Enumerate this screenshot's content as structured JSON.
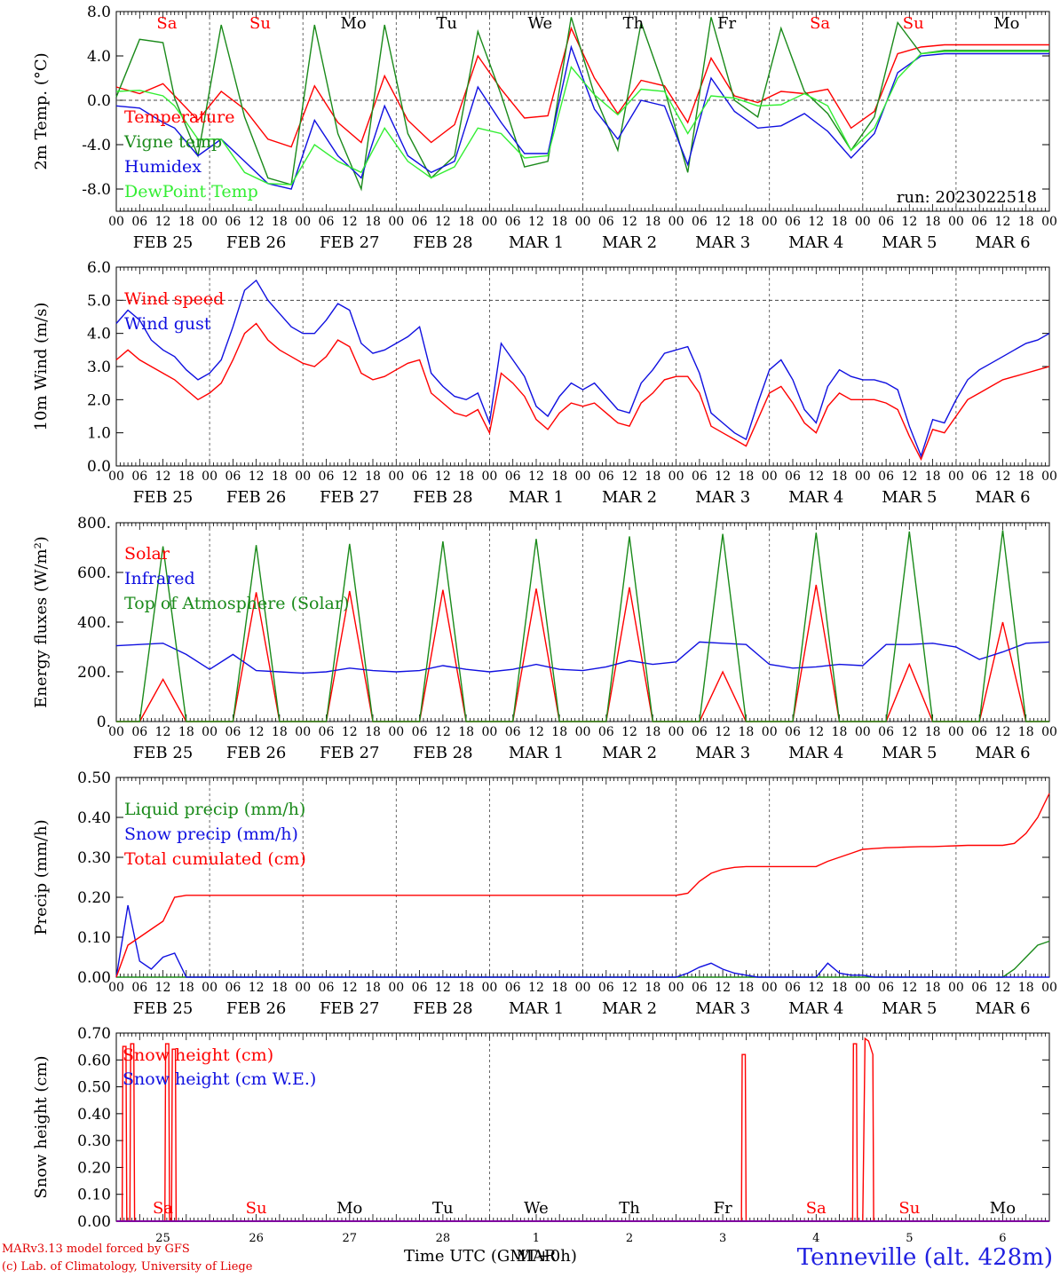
{
  "colors": {
    "red": "#ff0000",
    "green": "#1a8a1a",
    "blue": "#1010e0",
    "lightgreen": "#33ee33",
    "purple": "#8000a0",
    "grid": "#444444"
  },
  "time_axis": {
    "hour_labels": [
      "00",
      "06",
      "12",
      "18"
    ],
    "end_label": "00",
    "date_labels": [
      "FEB 25",
      "FEB 26",
      "FEB 27",
      "FEB 28",
      "MAR 1",
      "MAR 2",
      "MAR 3",
      "MAR 4",
      "MAR 5",
      "MAR 6"
    ],
    "weekdays": [
      "Sa",
      "Su",
      "Mo",
      "Tu",
      "We",
      "Th",
      "Fr",
      "Sa",
      "Su",
      "Mo"
    ],
    "weekday_colors": [
      "red",
      "red",
      "black",
      "black",
      "black",
      "black",
      "black",
      "red",
      "red",
      "black"
    ],
    "day_numbers": [
      "25",
      "26",
      "27",
      "28",
      "1",
      "2",
      "3",
      "4",
      "5",
      "6"
    ],
    "month_label": "MAR",
    "title": "Time UTC (GMT+0h)"
  },
  "footer": {
    "credit_line1": "MARv3.13 model forced by GFS",
    "credit_line2": "(c) Lab. of Climatology, University of Liege",
    "station": "Tenneville (alt. 428m)"
  },
  "chart_data": [
    {
      "type": "line",
      "ylabel": "2m Temp. (°C)",
      "ylim": [
        -10,
        8
      ],
      "ytick_values": [
        -8,
        -4,
        0,
        4,
        8
      ],
      "ytick_labels": [
        "-8.0",
        "-4.0",
        "0.0",
        "4.0",
        "8.0"
      ],
      "annotation": "run: 2023022518",
      "x": [
        0,
        6,
        12,
        15,
        21,
        27,
        33,
        39,
        45,
        51,
        57,
        63,
        69,
        75,
        81,
        87,
        93,
        99,
        105,
        111,
        117,
        123,
        129,
        135,
        141,
        147,
        153,
        159,
        165,
        171,
        177,
        183,
        189,
        195,
        201,
        207,
        213,
        219,
        225,
        231,
        237,
        240
      ],
      "series": [
        {
          "name": "Temperature",
          "color": "red",
          "values": [
            1.2,
            0.6,
            1.5,
            0.4,
            -1.8,
            0.8,
            -0.8,
            -3.5,
            -4.2,
            1.3,
            -2.0,
            -3.8,
            2.2,
            -1.8,
            -3.8,
            -2.2,
            4.0,
            1.0,
            -1.6,
            -1.4,
            6.5,
            2.0,
            -1.2,
            1.8,
            1.3,
            -2.0,
            3.8,
            0.4,
            -0.2,
            0.8,
            0.6,
            1.0,
            -2.5,
            -1.0,
            4.2,
            4.8,
            5.0,
            5.0,
            5.0,
            5.0,
            5.0,
            5.0
          ]
        },
        {
          "name": "Vigne temp",
          "color": "green",
          "values": [
            0.3,
            5.5,
            5.2,
            0.2,
            -5.0,
            6.8,
            -1.5,
            -7.0,
            -7.6,
            6.8,
            -3.0,
            -8.0,
            6.8,
            -3.0,
            -7.0,
            -5.0,
            6.2,
            0.5,
            -6.0,
            -5.5,
            7.5,
            0.5,
            -4.5,
            7.0,
            1.0,
            -6.5,
            7.5,
            0.0,
            -1.5,
            6.5,
            0.8,
            -1.2,
            -4.5,
            -1.5,
            7.0,
            4.2,
            4.5,
            4.5,
            4.5,
            4.5,
            4.5,
            4.5
          ]
        },
        {
          "name": "Humidex",
          "color": "blue",
          "values": [
            -0.5,
            -0.7,
            -2.0,
            -2.5,
            -5.0,
            -3.5,
            -5.5,
            -7.5,
            -8.0,
            -1.8,
            -5.0,
            -7.0,
            -0.5,
            -5.0,
            -6.5,
            -5.5,
            1.2,
            -2.0,
            -4.8,
            -4.8,
            4.8,
            -0.8,
            -3.5,
            0.0,
            -0.5,
            -5.8,
            2.0,
            -1.0,
            -2.5,
            -2.3,
            -1.2,
            -2.8,
            -5.2,
            -3.0,
            2.5,
            4.0,
            4.2,
            4.2,
            4.2,
            4.2,
            4.2,
            4.2
          ]
        },
        {
          "name": "DewPoint Temp",
          "color": "lightgreen",
          "values": [
            0.8,
            0.9,
            0.4,
            -0.5,
            -3.5,
            -3.5,
            -6.5,
            -7.5,
            -7.6,
            -4.0,
            -5.5,
            -6.5,
            -2.5,
            -5.5,
            -7.0,
            -6.0,
            -2.5,
            -3.0,
            -5.2,
            -5.0,
            3.0,
            0.5,
            -1.3,
            1.0,
            0.8,
            -3.0,
            0.4,
            0.2,
            -0.5,
            -0.4,
            0.6,
            -0.5,
            -4.5,
            -2.5,
            2.0,
            4.2,
            4.4,
            4.4,
            4.4,
            4.4,
            4.4,
            4.4
          ]
        }
      ]
    },
    {
      "type": "line",
      "ylabel": "10m Wind (m/s)",
      "ylim": [
        0,
        6
      ],
      "ytick_values": [
        0,
        1,
        2,
        3,
        4,
        5,
        6
      ],
      "ytick_labels": [
        "0.0",
        "1.0",
        "2.0",
        "3.0",
        "4.0",
        "5.0",
        "6.0"
      ],
      "x": [
        0,
        3,
        6,
        9,
        12,
        15,
        18,
        21,
        24,
        27,
        30,
        33,
        36,
        39,
        42,
        45,
        48,
        51,
        54,
        57,
        60,
        63,
        66,
        69,
        72,
        75,
        78,
        81,
        84,
        87,
        90,
        93,
        96,
        99,
        102,
        105,
        108,
        111,
        114,
        117,
        120,
        123,
        126,
        129,
        132,
        135,
        138,
        141,
        144,
        147,
        150,
        153,
        156,
        159,
        162,
        165,
        168,
        171,
        174,
        177,
        180,
        183,
        186,
        189,
        192,
        195,
        198,
        201,
        204,
        207,
        210,
        213,
        216,
        219,
        222,
        225,
        228,
        231,
        234,
        237,
        240
      ],
      "series": [
        {
          "name": "Wind speed",
          "color": "red",
          "values": [
            3.2,
            3.5,
            3.2,
            3.0,
            2.8,
            2.6,
            2.3,
            2.0,
            2.2,
            2.5,
            3.2,
            4.0,
            4.3,
            3.8,
            3.5,
            3.3,
            3.1,
            3.0,
            3.3,
            3.8,
            3.6,
            2.8,
            2.6,
            2.7,
            2.9,
            3.1,
            3.2,
            2.2,
            1.9,
            1.6,
            1.5,
            1.7,
            1.0,
            2.8,
            2.5,
            2.1,
            1.4,
            1.1,
            1.6,
            1.9,
            1.8,
            1.9,
            1.6,
            1.3,
            1.2,
            1.9,
            2.2,
            2.6,
            2.7,
            2.7,
            2.2,
            1.2,
            1.0,
            0.8,
            0.6,
            1.4,
            2.2,
            2.4,
            1.9,
            1.3,
            1.0,
            1.8,
            2.2,
            2.0,
            2.0,
            2.0,
            1.9,
            1.7,
            0.9,
            0.2,
            1.1,
            1.0,
            1.5,
            2.0,
            2.2,
            2.4,
            2.6,
            2.7,
            2.8,
            2.9,
            3.0
          ]
        },
        {
          "name": "Wind gust",
          "color": "blue",
          "values": [
            4.3,
            4.7,
            4.4,
            3.8,
            3.5,
            3.3,
            2.9,
            2.6,
            2.8,
            3.2,
            4.2,
            5.3,
            5.6,
            5.0,
            4.6,
            4.2,
            4.0,
            4.0,
            4.4,
            4.9,
            4.7,
            3.7,
            3.4,
            3.5,
            3.7,
            3.9,
            4.2,
            2.8,
            2.4,
            2.1,
            2.0,
            2.2,
            1.3,
            3.7,
            3.2,
            2.7,
            1.8,
            1.5,
            2.1,
            2.5,
            2.3,
            2.5,
            2.1,
            1.7,
            1.6,
            2.5,
            2.9,
            3.4,
            3.5,
            3.6,
            2.8,
            1.6,
            1.3,
            1.0,
            0.8,
            1.9,
            2.9,
            3.2,
            2.6,
            1.7,
            1.3,
            2.4,
            2.9,
            2.7,
            2.6,
            2.6,
            2.5,
            2.3,
            1.2,
            0.3,
            1.4,
            1.3,
            2.0,
            2.6,
            2.9,
            3.1,
            3.3,
            3.5,
            3.7,
            3.8,
            4.0
          ]
        }
      ]
    },
    {
      "type": "line",
      "ylabel": "Energy fluxes (W/m²)",
      "ylim": [
        0,
        800
      ],
      "ytick_values": [
        0,
        200,
        400,
        600,
        800
      ],
      "ytick_labels": [
        "0.",
        "200.",
        "400.",
        "600.",
        "800."
      ],
      "x": [
        0,
        6,
        12,
        18,
        24,
        30,
        36,
        42,
        48,
        54,
        60,
        66,
        72,
        78,
        84,
        90,
        96,
        102,
        108,
        114,
        120,
        126,
        132,
        138,
        144,
        150,
        156,
        162,
        168,
        174,
        180,
        186,
        192,
        198,
        204,
        210,
        216,
        222,
        228,
        234,
        240
      ],
      "series": [
        {
          "name": "Solar",
          "color": "red",
          "values": [
            0,
            0,
            170,
            0,
            0,
            0,
            520,
            0,
            0,
            0,
            525,
            0,
            0,
            0,
            530,
            0,
            0,
            0,
            535,
            0,
            0,
            0,
            540,
            0,
            0,
            0,
            200,
            0,
            0,
            0,
            550,
            0,
            0,
            0,
            230,
            0,
            0,
            0,
            400,
            0,
            0
          ]
        },
        {
          "name": "Infrared",
          "color": "blue",
          "values": [
            305,
            310,
            315,
            270,
            210,
            270,
            205,
            200,
            195,
            200,
            215,
            205,
            200,
            205,
            225,
            210,
            200,
            210,
            230,
            210,
            205,
            220,
            245,
            230,
            240,
            320,
            315,
            310,
            230,
            215,
            220,
            230,
            225,
            310,
            310,
            315,
            300,
            250,
            280,
            315,
            320
          ]
        },
        {
          "name": "Top of Atmosphere (Solar)",
          "color": "green",
          "values": [
            0,
            0,
            705,
            0,
            0,
            0,
            710,
            0,
            0,
            0,
            715,
            0,
            0,
            0,
            725,
            0,
            0,
            0,
            735,
            0,
            0,
            0,
            745,
            0,
            0,
            0,
            755,
            0,
            0,
            0,
            760,
            0,
            0,
            0,
            765,
            0,
            0,
            0,
            770,
            0,
            0
          ]
        }
      ]
    },
    {
      "type": "line",
      "ylabel": "Precip (mm/h)",
      "ylim": [
        0,
        0.5
      ],
      "ytick_values": [
        0,
        0.1,
        0.2,
        0.3,
        0.4,
        0.5
      ],
      "ytick_labels": [
        "0.00",
        "0.10",
        "0.20",
        "0.30",
        "0.40",
        "0.50"
      ],
      "x": [
        0,
        3,
        6,
        9,
        12,
        15,
        18,
        24,
        48,
        72,
        96,
        120,
        144,
        147,
        150,
        153,
        156,
        159,
        162,
        165,
        168,
        171,
        174,
        177,
        180,
        183,
        186,
        189,
        192,
        195,
        198,
        201,
        204,
        207,
        210,
        213,
        216,
        219,
        222,
        225,
        228,
        231,
        234,
        237,
        240
      ],
      "series": [
        {
          "name": "Liquid precip (mm/h)",
          "color": "green",
          "values": [
            0,
            0,
            0,
            0,
            0,
            0,
            0,
            0,
            0,
            0,
            0,
            0,
            0,
            0,
            0,
            0,
            0,
            0,
            0,
            0,
            0,
            0,
            0,
            0,
            0,
            0,
            0,
            0,
            0,
            0,
            0,
            0,
            0,
            0,
            0,
            0,
            0,
            0,
            0,
            0,
            0,
            0.02,
            0.05,
            0.08,
            0.09
          ]
        },
        {
          "name": "Snow precip (mm/h)",
          "color": "blue",
          "values": [
            0.0,
            0.18,
            0.04,
            0.02,
            0.05,
            0.06,
            0.0,
            0.0,
            0.0,
            0.0,
            0.0,
            0.0,
            0.0,
            0.01,
            0.025,
            0.035,
            0.02,
            0.01,
            0.005,
            0,
            0,
            0,
            0,
            0,
            0,
            0.035,
            0.01,
            0.005,
            0.005,
            0,
            0,
            0,
            0,
            0,
            0,
            0,
            0,
            0,
            0,
            0,
            0,
            0,
            0,
            0,
            0
          ]
        },
        {
          "name": "Total cumulated (cm)",
          "color": "red",
          "values": [
            0.0,
            0.08,
            0.1,
            0.12,
            0.14,
            0.2,
            0.205,
            0.205,
            0.205,
            0.205,
            0.205,
            0.205,
            0.205,
            0.21,
            0.24,
            0.26,
            0.27,
            0.275,
            0.277,
            0.277,
            0.277,
            0.277,
            0.277,
            0.277,
            0.277,
            0.29,
            0.3,
            0.31,
            0.32,
            0.322,
            0.324,
            0.325,
            0.326,
            0.327,
            0.327,
            0.328,
            0.329,
            0.33,
            0.33,
            0.33,
            0.33,
            0.335,
            0.36,
            0.4,
            0.46
          ]
        }
      ]
    },
    {
      "type": "line",
      "ylabel": "Snow height (cm)",
      "ylim": [
        0,
        0.7
      ],
      "ytick_values": [
        0,
        0.1,
        0.2,
        0.3,
        0.4,
        0.5,
        0.6,
        0.7
      ],
      "ytick_labels": [
        "0.00",
        "0.10",
        "0.20",
        "0.30",
        "0.40",
        "0.50",
        "0.60",
        "0.70"
      ],
      "x": [
        0,
        1.5,
        1.7,
        2.5,
        2.7,
        3.5,
        3.7,
        4.5,
        4.7,
        5.5,
        5.7,
        12.5,
        12.7,
        13.5,
        13.7,
        14.2,
        14.4,
        15.2,
        15.4,
        16,
        160,
        160.8,
        161,
        161.8,
        162,
        170,
        189,
        189.4,
        189.6,
        190.4,
        190.6,
        192,
        192.6,
        193.5,
        194.6,
        194.8,
        196,
        240
      ],
      "series": [
        {
          "name": "Snow height (cm)",
          "color": "red",
          "values": [
            0,
            0,
            0.65,
            0.65,
            0,
            0,
            0.66,
            0.66,
            0,
            0,
            0,
            0,
            0.66,
            0.66,
            0,
            0,
            0.64,
            0.64,
            0,
            0,
            0,
            0,
            0.62,
            0.62,
            0,
            0,
            0,
            0,
            0.66,
            0.66,
            0,
            0,
            0.68,
            0.67,
            0.62,
            0,
            0,
            0
          ]
        },
        {
          "name": "Snow height (cm W.E.)",
          "color": "blue",
          "values": [
            0,
            0,
            0,
            0,
            0,
            0,
            0,
            0,
            0,
            0,
            0,
            0,
            0,
            0,
            0,
            0,
            0,
            0,
            0,
            0,
            0,
            0,
            0,
            0,
            0,
            0,
            0,
            0,
            0,
            0,
            0,
            0,
            0,
            0,
            0,
            0,
            0,
            0
          ]
        }
      ]
    }
  ]
}
